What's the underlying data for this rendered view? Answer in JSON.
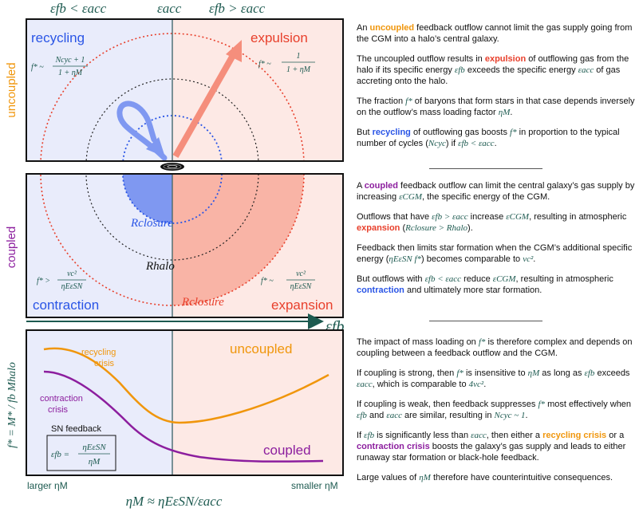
{
  "colors": {
    "left_bg": "#e9ecfb",
    "right_bg": "#fde9e5",
    "blue": "#2a55e6",
    "red": "#e8402c",
    "orange": "#f0960c",
    "purple": "#8c1e9e",
    "teal": "#1d5a50",
    "salmon": "#f58e7c",
    "lightblue": "#7f98f1"
  },
  "header": {
    "left": "εfb < εacc",
    "center": "εacc",
    "right": "εfb > εacc"
  },
  "panel_top": {
    "side_label": "uncoupled",
    "left_title": "recycling",
    "right_title": "expulsion",
    "left_formula_lhs": "f* ~",
    "left_formula_num": "Ncyc + 1",
    "left_formula_den": "1 + ηM",
    "right_formula_lhs": "f* ~",
    "right_formula_num": "1",
    "right_formula_den": "1 + ηM"
  },
  "panel_mid": {
    "side_label": "coupled",
    "r_closure_left": "Rclosure",
    "r_halo": "Rhalo",
    "r_closure_right": "Rclosure",
    "left_title": "contraction",
    "right_title": "expansion",
    "left_formula_lhs": "f* >",
    "left_formula_num": "vc²",
    "left_formula_den": "ηEεSN",
    "right_formula_lhs": "f* ~",
    "right_formula_num": "vc²",
    "right_formula_den": "ηEεSN"
  },
  "axis": {
    "label": "εfb"
  },
  "panel_bottom": {
    "y_label": "f* = M* / fb Mhalo",
    "curve_recycling": "recycling\ncrisis",
    "curve_recycling_l1": "recycling",
    "curve_recycling_l2": "crisis",
    "curve_contraction_l1": "contraction",
    "curve_contraction_l2": "crisis",
    "uncoupled": "uncoupled",
    "coupled": "coupled",
    "sn_title": "SN feedback",
    "sn_lhs": "εfb =",
    "sn_num": "ηEεSN",
    "sn_den": "ηM",
    "x_left": "larger ηM",
    "x_right": "smaller ηM",
    "x_center": "ηM ≈ ηEεSN/εacc"
  },
  "text": {
    "p1a": "An ",
    "p1_hl": "uncoupled",
    "p1b": " feedback outflow cannot limit the gas supply going from the CGM into a halo’s central galaxy.",
    "p2a": "The uncoupled outflow results in ",
    "p2_hl": "expulsion",
    "p2b": " of outflowing gas from the halo if its specific energy ",
    "p2_m1": "εfb",
    "p2c": " exceeds the specific energy ",
    "p2_m2": "εacc",
    "p2d": " of gas accreting onto the halo.",
    "p3a": "The fraction ",
    "p3_m1": "f*",
    "p3b": " of baryons that form stars in that case depends inversely on the outflow’s mass loading factor ",
    "p3_m2": "ηM",
    "p3c": ".",
    "p4a": "But ",
    "p4_hl": "recycling",
    "p4b": " of outflowing gas boosts ",
    "p4_m1": "f*",
    "p4c": " in proportion to the typical number of cycles (",
    "p4_m2": "Ncyc",
    "p4d": ") if ",
    "p4_m3": "εfb < εacc",
    "p4e": ".",
    "p5a": "A ",
    "p5_hl": "coupled",
    "p5b": " feedback outflow can limit the central galaxy’s gas supply by increasing ",
    "p5_m1": "εCGM",
    "p5c": ", the specific energy of the CGM.",
    "p6a": "Outflows that have ",
    "p6_m1": "εfb > εacc",
    "p6b": " increase ",
    "p6_m2": "εCGM",
    "p6c": ", resulting in atmospheric ",
    "p6_hl": "expansion",
    "p6d": " (",
    "p6_m3": "Rclosure > Rhalo",
    "p6e": ").",
    "p7a": "Feedback then limits star formation when the CGM’s additional specific energy (",
    "p7_m1": "ηEεSN f*",
    "p7b": ") becomes comparable to ",
    "p7_m2": "vc²",
    "p7c": ".",
    "p8a": "But outflows with ",
    "p8_m1": "εfb < εacc",
    "p8b": " reduce ",
    "p8_m2": "εCGM",
    "p8c": ", resulting in atmospheric ",
    "p8_hl": "contraction",
    "p8d": " and ultimately more star formation.",
    "p9a": "The impact of mass loading on ",
    "p9_m1": "f*",
    "p9b": " is therefore complex and depends on coupling between a feedback outflow and the CGM.",
    "p10a": "If coupling is strong, then ",
    "p10_m1": "f*",
    "p10b": " is insensitive to ",
    "p10_m2": "ηM",
    "p10c": " as long as ",
    "p10_m3": "εfb",
    "p10d": " exceeds ",
    "p10_m4": "εacc",
    "p10e": ", which is comparable to ",
    "p10_m5": "4vc²",
    "p10f": ".",
    "p11a": "If coupling is weak, then feedback suppresses ",
    "p11_m1": "f*",
    "p11b": " most effectively when ",
    "p11_m2": "εfb",
    "p11c": " and ",
    "p11_m3": "εacc",
    "p11d": " are similar, resulting in ",
    "p11_m4": "Ncyc ~ 1",
    "p11e": ".",
    "p12a": "If ",
    "p12_m1": "εfb",
    "p12b": " is significantly less than ",
    "p12_m2": "εacc",
    "p12c": ", then either a ",
    "p12_hl1": "recycling crisis",
    "p12d": " or a ",
    "p12_hl2": "contraction crisis",
    "p12e": " boosts the galaxy’s gas supply and leads to either runaway star formation or black-hole feedback.",
    "p13a": "Large values of ",
    "p13_m1": "ηM",
    "p13b": " therefore have counterintuitive consequences."
  }
}
